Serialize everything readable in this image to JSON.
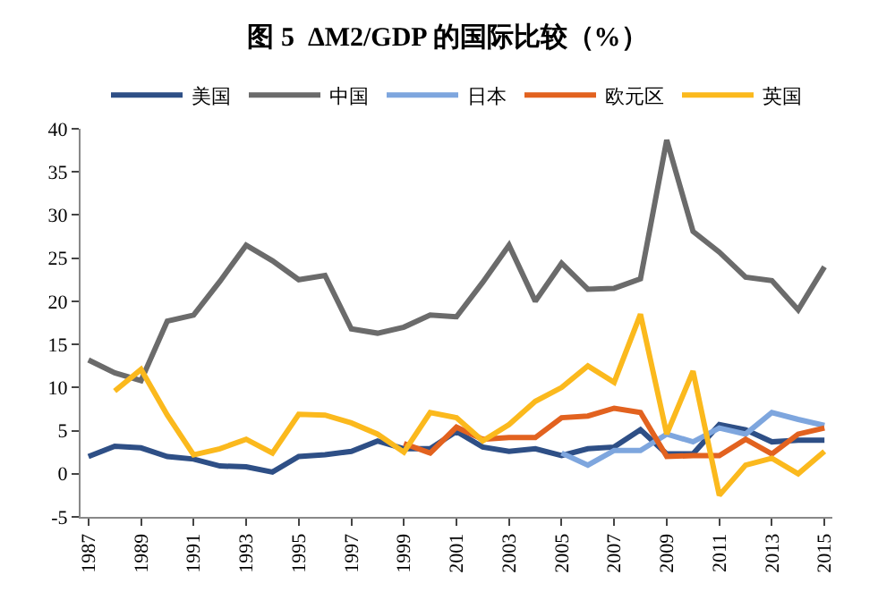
{
  "chart_data": {
    "type": "line",
    "title": "图 5  ΔM2/GDP 的国际比较（%）",
    "categories": [
      "1987",
      null,
      "1989",
      null,
      "1991",
      null,
      "1993",
      null,
      "1995",
      null,
      "1997",
      null,
      "1999",
      null,
      "2001",
      null,
      "2003",
      null,
      "2005",
      null,
      "2007",
      null,
      "2009",
      null,
      "2011",
      null,
      "2013",
      null,
      "2015"
    ],
    "series": [
      {
        "name": "美国",
        "color": "#2e4f86",
        "values": [
          2.0,
          3.2,
          3.0,
          2.0,
          1.7,
          0.9,
          0.8,
          0.2,
          2.0,
          2.2,
          2.6,
          3.8,
          2.9,
          2.9,
          4.9,
          3.1,
          2.6,
          2.9,
          2.1,
          2.9,
          3.1,
          5.1,
          2.3,
          2.3,
          5.7,
          5.1,
          3.7,
          3.9,
          3.9
        ]
      },
      {
        "name": "中国",
        "color": "#6b6b6b",
        "values": [
          13.2,
          11.7,
          10.8,
          17.7,
          18.4,
          22.3,
          26.5,
          24.7,
          22.5,
          23.0,
          16.8,
          16.3,
          17.0,
          18.4,
          18.2,
          22.2,
          26.5,
          20.0,
          24.4,
          21.4,
          21.5,
          22.6,
          38.7,
          28.1,
          25.7,
          22.8,
          22.4,
          19.0,
          24.0
        ]
      },
      {
        "name": "日本",
        "color": "#7ea6de",
        "values": [
          null,
          null,
          null,
          null,
          null,
          null,
          null,
          null,
          null,
          null,
          null,
          null,
          null,
          null,
          null,
          null,
          null,
          null,
          2.4,
          1.0,
          2.7,
          2.7,
          4.6,
          3.7,
          5.3,
          4.6,
          7.1,
          6.3,
          5.6
        ]
      },
      {
        "name": "欧元区",
        "color": "#e2621f",
        "values": [
          null,
          null,
          null,
          null,
          null,
          null,
          null,
          null,
          null,
          null,
          null,
          null,
          3.5,
          2.4,
          5.4,
          4.0,
          4.2,
          4.2,
          6.5,
          6.7,
          7.6,
          7.1,
          2.0,
          2.1,
          2.1,
          4.0,
          2.3,
          4.6,
          5.3
        ]
      },
      {
        "name": "英国",
        "color": "#fbb91d",
        "values": [
          null,
          9.6,
          12.1,
          6.8,
          2.2,
          2.9,
          4.0,
          2.4,
          6.9,
          6.8,
          5.9,
          4.6,
          2.5,
          7.1,
          6.5,
          3.8,
          5.7,
          8.4,
          10.0,
          12.5,
          10.6,
          18.5,
          4.6,
          11.9,
          -2.5,
          1.0,
          1.8,
          0.0,
          2.6
        ]
      }
    ],
    "ylim": [
      -5,
      40
    ],
    "yticks": [
      -5,
      0,
      5,
      10,
      15,
      20,
      25,
      30,
      35,
      40
    ],
    "legend": "top",
    "marker": "none",
    "line_style": "solid"
  }
}
